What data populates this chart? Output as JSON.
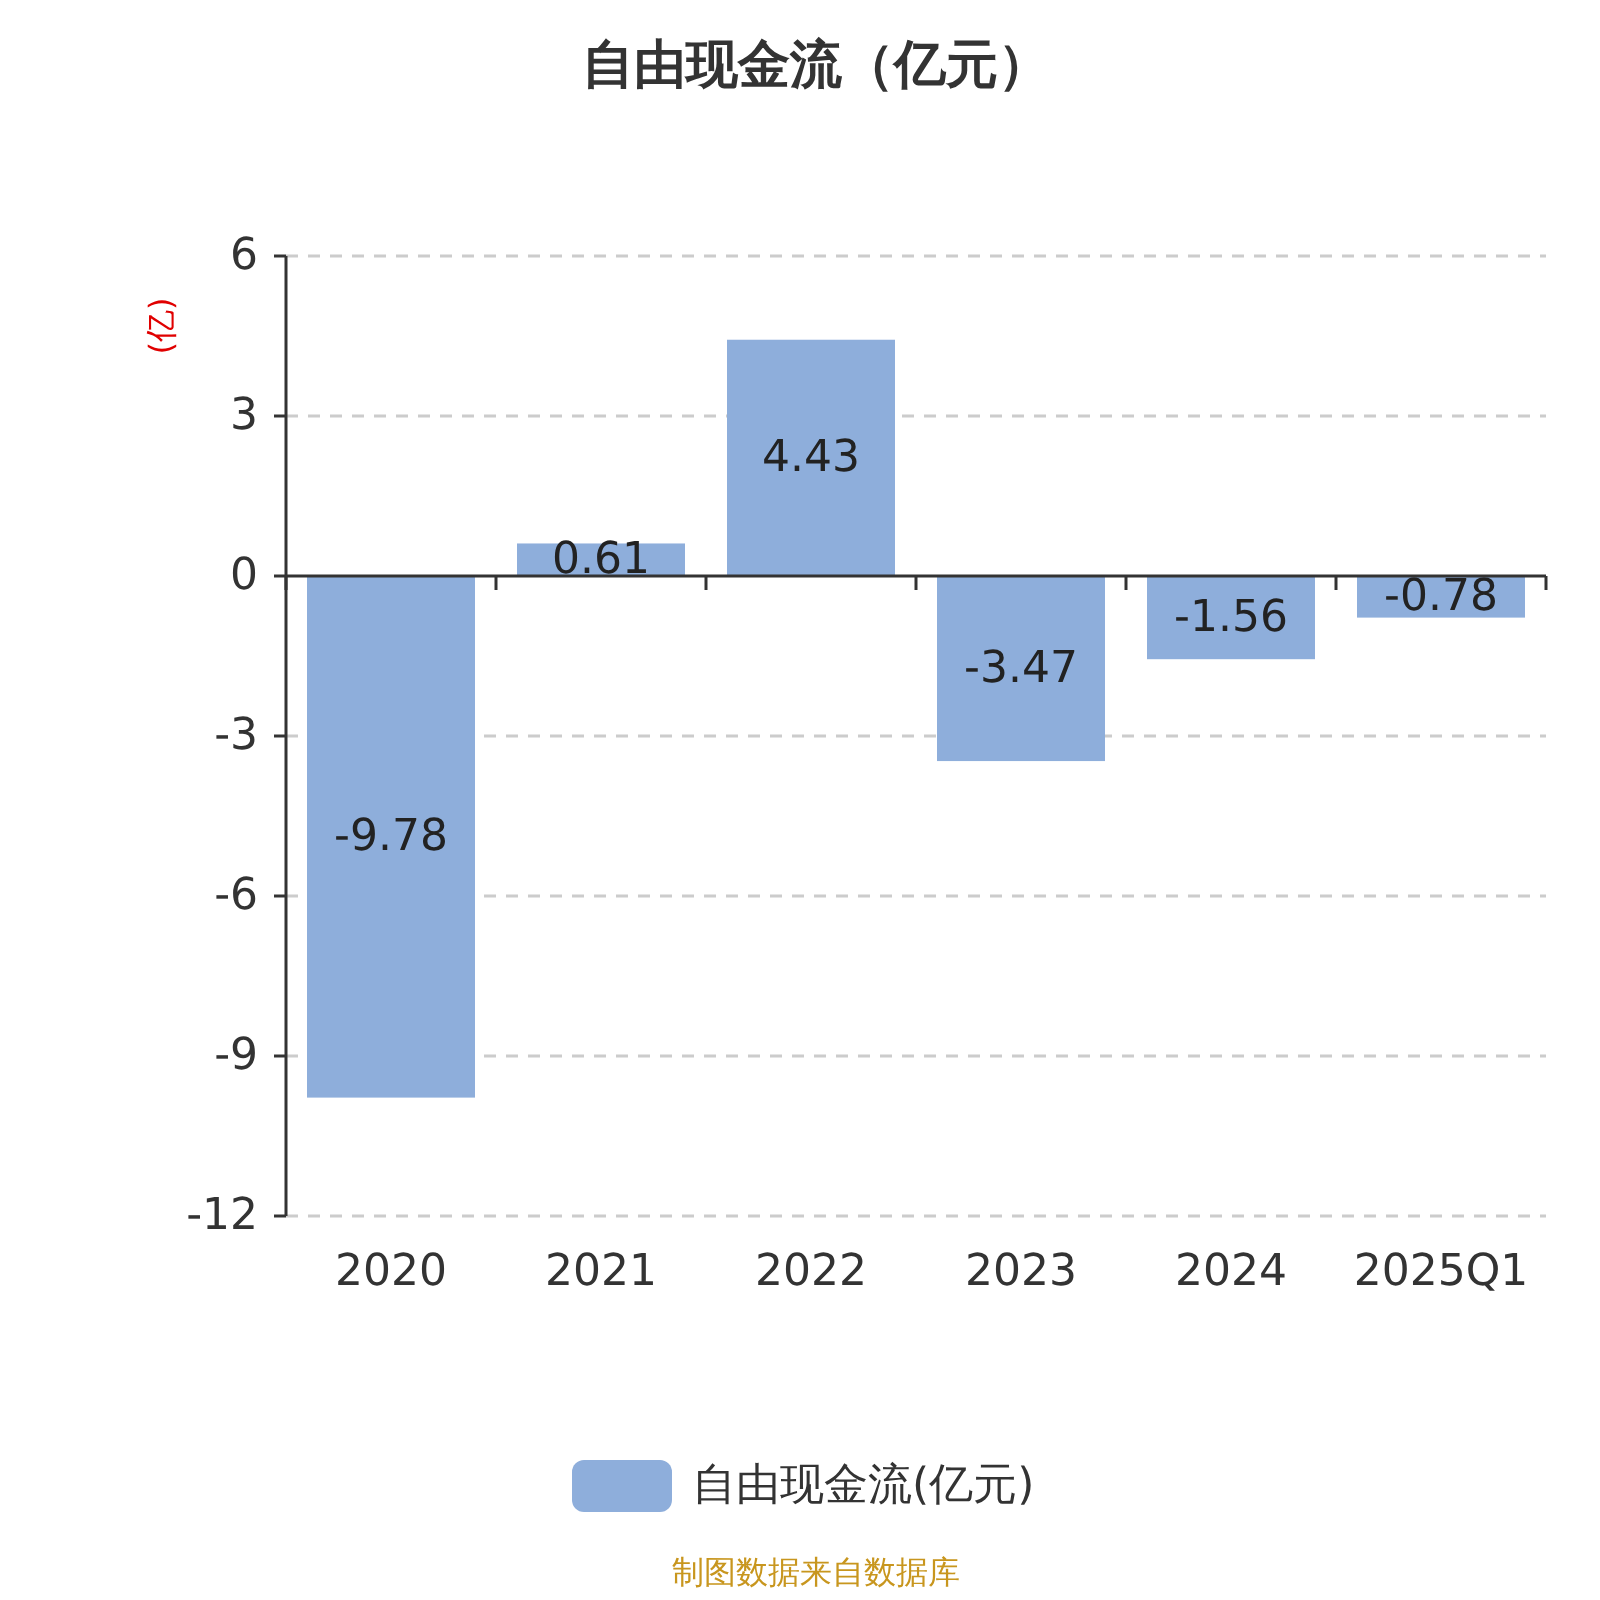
{
  "chart_data": {
    "type": "bar",
    "title": "自由现金流（亿元）",
    "ylabel": "(亿)",
    "categories": [
      "2020",
      "2021",
      "2022",
      "2023",
      "2024",
      "2025Q1"
    ],
    "series": [
      {
        "name": "自由现金流(亿元)",
        "color": "#8eaedb",
        "values": [
          -9.78,
          0.61,
          4.43,
          -3.47,
          -1.56,
          -0.78
        ]
      }
    ],
    "ylim": [
      -12,
      6
    ],
    "yticks": [
      -12,
      -9,
      -6,
      -3,
      0,
      3,
      6
    ],
    "grid": "y",
    "legend": "bottom",
    "data_labels": true,
    "annotations": [
      "制图数据来自数据库"
    ]
  }
}
